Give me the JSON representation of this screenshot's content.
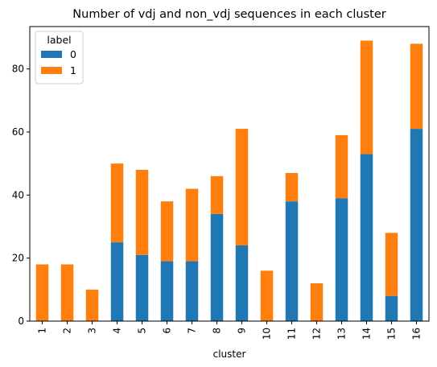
{
  "chart_data": {
    "type": "bar",
    "stacked": true,
    "title": "Number of vdj and non_vdj sequences in each cluster",
    "xlabel": "cluster",
    "ylabel": "",
    "categories": [
      "1",
      "2",
      "3",
      "4",
      "5",
      "6",
      "7",
      "8",
      "9",
      "10",
      "11",
      "12",
      "13",
      "14",
      "15",
      "16"
    ],
    "series": [
      {
        "name": "0",
        "color": "#1f77b4",
        "values": [
          0,
          0,
          0,
          25,
          21,
          19,
          19,
          34,
          24,
          0,
          38,
          0,
          39,
          53,
          8,
          61
        ]
      },
      {
        "name": "1",
        "color": "#ff7f0e",
        "values": [
          18,
          18,
          10,
          25,
          27,
          19,
          23,
          12,
          37,
          16,
          9,
          12,
          20,
          36,
          20,
          27
        ]
      }
    ],
    "ylim": [
      0,
      93.45
    ],
    "yticks": [
      0,
      20,
      40,
      60,
      80
    ],
    "grid": false,
    "legend": {
      "title": "label",
      "placement": "upper-left"
    }
  }
}
